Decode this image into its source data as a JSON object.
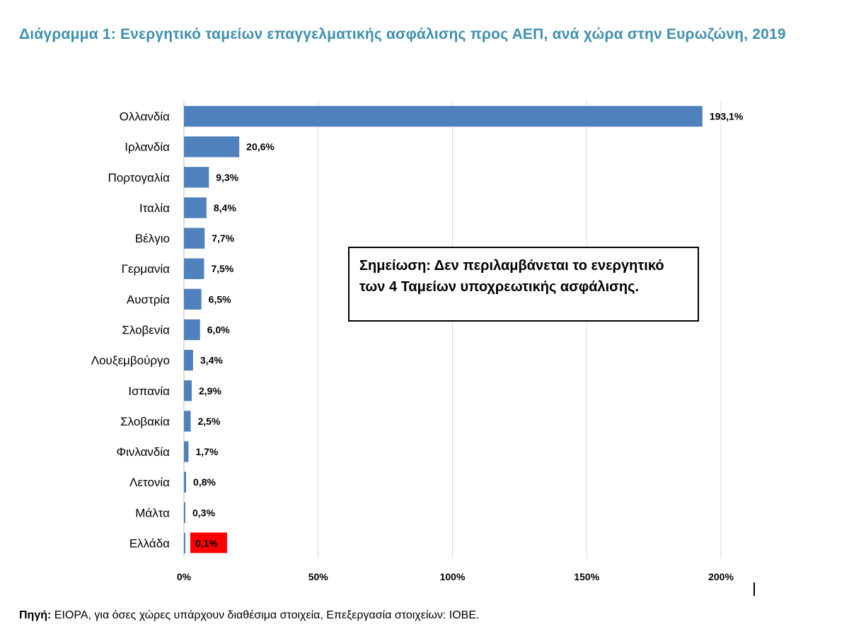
{
  "chart_data": {
    "type": "bar",
    "orientation": "horizontal",
    "title": "Διάγραμμα 1: Ενεργητικό ταμείων επαγγελματικής ασφάλισης προς ΑΕΠ, ανά χώρα στην Ευρωζώνη, 2019",
    "categories": [
      "Ολλανδία",
      "Ιρλανδία",
      "Πορτογαλία",
      "Ιταλία",
      "Βέλγιο",
      "Γερμανία",
      "Αυστρία",
      "Σλοβενία",
      "Λουξεμβούργο",
      "Ισπανία",
      "Σλοβακία",
      "Φινλανδία",
      "Λετονία",
      "Μάλτα",
      "Ελλάδα"
    ],
    "values": [
      193.1,
      20.6,
      9.3,
      8.4,
      7.7,
      7.5,
      6.5,
      6.0,
      3.4,
      2.9,
      2.5,
      1.7,
      0.8,
      0.3,
      0.1
    ],
    "data_labels": [
      "193,1%",
      "20,6%",
      "9,3%",
      "8,4%",
      "7,7%",
      "7,5%",
      "6,5%",
      "6,0%",
      "3,4%",
      "2,9%",
      "2,5%",
      "1,7%",
      "0,8%",
      "0,3%",
      "0,1%"
    ],
    "xlim": [
      0,
      200
    ],
    "x_ticks": [
      0,
      50,
      100,
      150,
      200
    ],
    "x_tick_labels": [
      "0%",
      "50%",
      "100%",
      "150%",
      "200%"
    ],
    "grid": true,
    "bar_color": "#4f81bd",
    "highlight": {
      "category": "Ελλάδα",
      "label_background": "#ff0000"
    }
  },
  "note": {
    "label": "Σημείωση:",
    "text": "Δεν περιλαμβάνεται το ενεργητικό των 4 Ταμείων υποχρεωτικής ασφάλισης."
  },
  "source": {
    "label": "Πηγή:",
    "text": "EIOPA, για όσες χώρες υπάρχουν διαθέσιμα στοιχεία, Επεξεργασία στοιχείων: ΙΟΒΕ."
  }
}
